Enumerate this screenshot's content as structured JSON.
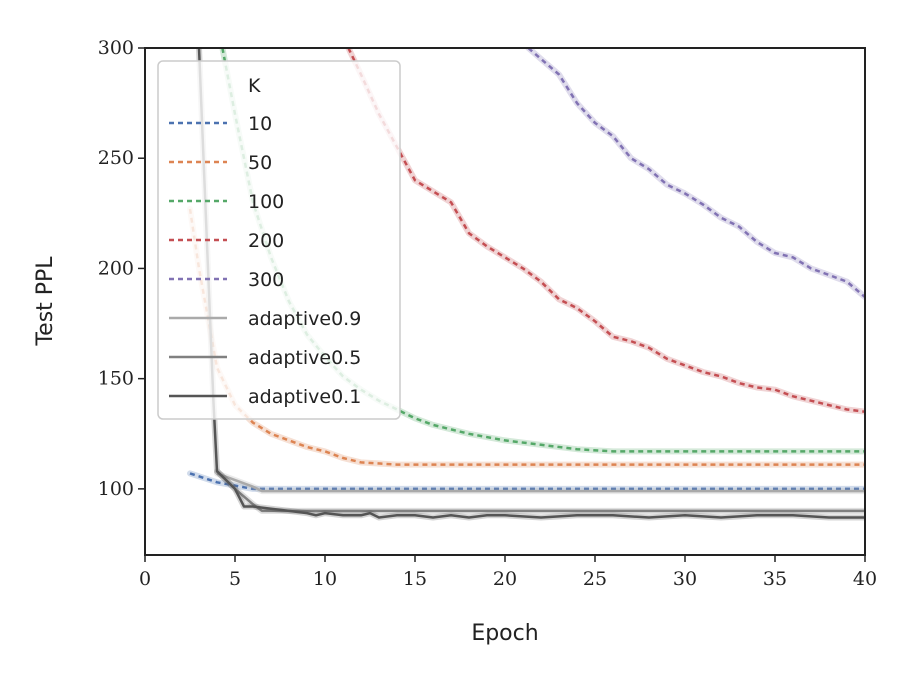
{
  "chart_data": {
    "type": "line",
    "xlabel": "Epoch",
    "ylabel": "Test PPL",
    "xlim": [
      0,
      40
    ],
    "ylim": [
      70,
      300
    ],
    "xticks": [
      0,
      5,
      10,
      15,
      20,
      25,
      30,
      35,
      40
    ],
    "yticks": [
      100,
      150,
      200,
      250,
      300
    ],
    "legend_title": "K",
    "legend_position": "upper-left",
    "series": [
      {
        "name": "10",
        "style": "dashed",
        "color": "#4c72b0",
        "x": [
          2.5,
          4,
          6,
          8,
          10,
          15,
          20,
          25,
          30,
          35,
          40
        ],
        "y": [
          107,
          103,
          100,
          100,
          100,
          100,
          100,
          100,
          100,
          100,
          100
        ]
      },
      {
        "name": "50",
        "style": "dashed",
        "color": "#dd8452",
        "x": [
          2.5,
          3,
          4,
          5,
          6,
          7,
          8,
          9,
          10,
          11,
          12,
          14,
          16,
          20,
          25,
          30,
          35,
          40
        ],
        "y": [
          227,
          200,
          155,
          138,
          130,
          125,
          122,
          119,
          117,
          114,
          112,
          111,
          111,
          111,
          111,
          111,
          111,
          111
        ]
      },
      {
        "name": "100",
        "style": "dashed",
        "color": "#55a868",
        "x": [
          4.3,
          5,
          6,
          7,
          8,
          9,
          10,
          11,
          12,
          13,
          14,
          15,
          16,
          17,
          18,
          20,
          22,
          24,
          26,
          28,
          30,
          35,
          40
        ],
        "y": [
          300,
          270,
          230,
          205,
          185,
          170,
          160,
          151,
          145,
          140,
          136,
          132,
          129,
          127,
          125,
          122,
          120,
          118,
          117,
          117,
          117,
          117,
          117
        ]
      },
      {
        "name": "200",
        "style": "dashed",
        "color": "#c44e52",
        "x": [
          11.3,
          12,
          13,
          14,
          15,
          16,
          17,
          18,
          19,
          20,
          21,
          22,
          23,
          24,
          25,
          26,
          27,
          28,
          29,
          30,
          31,
          32,
          33,
          34,
          35,
          36,
          37,
          38,
          39,
          40
        ],
        "y": [
          300,
          288,
          270,
          255,
          240,
          235,
          230,
          216,
          210,
          205,
          200,
          194,
          186,
          182,
          176,
          169,
          167,
          164,
          159,
          156,
          153,
          151,
          148,
          146,
          145,
          142,
          140,
          138,
          136,
          135
        ]
      },
      {
        "name": "300",
        "style": "dashed",
        "color": "#8172b3",
        "x": [
          21.3,
          22,
          23,
          24,
          25,
          26,
          27,
          28,
          29,
          30,
          31,
          32,
          33,
          34,
          35,
          36,
          37,
          38,
          39,
          40
        ],
        "y": [
          300,
          295,
          288,
          275,
          266,
          260,
          250,
          245,
          238,
          234,
          229,
          223,
          219,
          212,
          207,
          205,
          200,
          197,
          194,
          187
        ]
      },
      {
        "name": "adaptive0.9",
        "style": "solid",
        "color": "#aaaaaa",
        "x": [
          4,
          5,
          6,
          6.5,
          10,
          15,
          20,
          25,
          30,
          35,
          40
        ],
        "y": [
          107,
          104,
          101,
          99,
          99,
          99,
          99,
          99,
          99,
          99,
          99
        ]
      },
      {
        "name": "adaptive0.5",
        "style": "solid",
        "color": "#808080",
        "x": [
          4,
          5,
          6,
          6.5,
          10,
          15,
          20,
          25,
          30,
          35,
          40
        ],
        "y": [
          108,
          100,
          93,
          90,
          90,
          90,
          90,
          90,
          90,
          90,
          90
        ]
      },
      {
        "name": "adaptive0.1",
        "style": "solid",
        "color": "#555555",
        "x": [
          3,
          3.5,
          3.8,
          4,
          5,
          5.5,
          6,
          7,
          8,
          9,
          9.5,
          10,
          11,
          11.5,
          12,
          12.5,
          13,
          14,
          15,
          16,
          17,
          18,
          19,
          20,
          22,
          24,
          26,
          28,
          30,
          32,
          34,
          36,
          38,
          40
        ],
        "y": [
          300,
          200,
          140,
          108,
          100,
          92,
          92,
          91,
          90,
          89,
          88,
          89,
          88,
          88,
          88,
          89,
          87,
          88,
          88,
          87,
          88,
          87,
          88,
          88,
          87,
          88,
          88,
          87,
          88,
          87,
          88,
          88,
          87,
          87
        ]
      }
    ]
  }
}
